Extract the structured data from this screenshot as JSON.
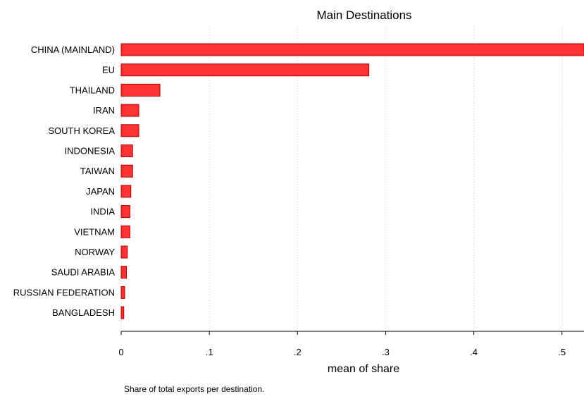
{
  "chart_data": {
    "type": "bar",
    "orientation": "horizontal",
    "title": "Main Destinations",
    "xlabel": "mean of share",
    "ylabel": "",
    "note": "Share of total exports per destination.",
    "categories": [
      "CHINA (MAINLAND)",
      "EU",
      "THAILAND",
      "IRAN",
      "SOUTH KOREA",
      "INDONESIA",
      "TAIWAN",
      "JAPAN",
      "INDIA",
      "VIETNAM",
      "NORWAY",
      "SAUDI ARABIA",
      "RUSSIAN FEDERATION",
      "BANGLADESH"
    ],
    "values": [
      0.525,
      0.281,
      0.044,
      0.02,
      0.02,
      0.013,
      0.013,
      0.011,
      0.01,
      0.01,
      0.007,
      0.006,
      0.004,
      0.003
    ],
    "xlim": [
      0,
      0.525
    ],
    "xticks": [
      0,
      0.1,
      0.2,
      0.3,
      0.4,
      0.5
    ],
    "xtick_labels": [
      "0",
      ".1",
      ".2",
      ".3",
      ".4",
      ".5"
    ],
    "grid": "vertical dotted",
    "legend": "none",
    "bar_color": "#ff3333",
    "bar_edge_color": "#b00000",
    "grid_color": "#c8c8c8"
  }
}
